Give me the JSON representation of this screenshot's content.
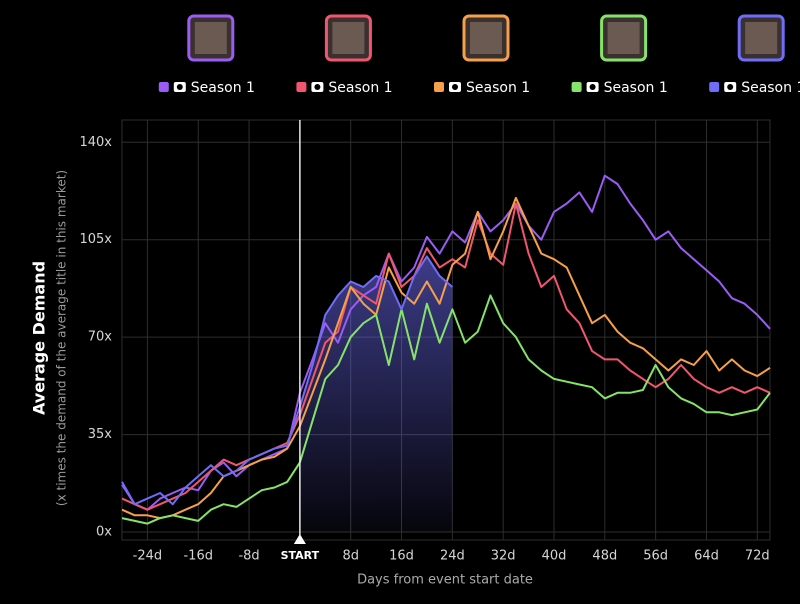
{
  "chart_data": {
    "type": "line",
    "y_title": "Average Demand",
    "y_subtitle": "(x times the demand of the average title in this market)",
    "x_title": "Days from event start date",
    "grid": true,
    "legend": "top",
    "xlim": [
      -28,
      74
    ],
    "ylim": [
      0,
      148
    ],
    "xticks": [
      {
        "value": -24,
        "label": "-24d"
      },
      {
        "value": -16,
        "label": "-16d"
      },
      {
        "value": -8,
        "label": "-8d"
      },
      {
        "value": 0,
        "label": "START"
      },
      {
        "value": 8,
        "label": "8d"
      },
      {
        "value": 16,
        "label": "16d"
      },
      {
        "value": 24,
        "label": "24d"
      },
      {
        "value": 32,
        "label": "32d"
      },
      {
        "value": 40,
        "label": "40d"
      },
      {
        "value": 48,
        "label": "48d"
      },
      {
        "value": 56,
        "label": "56d"
      },
      {
        "value": 64,
        "label": "64d"
      },
      {
        "value": 72,
        "label": "72d"
      }
    ],
    "yticks": [
      {
        "value": 0,
        "label": "0x"
      },
      {
        "value": 35,
        "label": "35x"
      },
      {
        "value": 70,
        "label": "70x"
      },
      {
        "value": 105,
        "label": "105x"
      },
      {
        "value": 140,
        "label": "140x"
      }
    ],
    "x": [
      -28,
      -26,
      -24,
      -22,
      -20,
      -18,
      -16,
      -14,
      -12,
      -10,
      -8,
      -6,
      -4,
      -2,
      0,
      2,
      4,
      6,
      8,
      10,
      12,
      14,
      16,
      18,
      20,
      22,
      24,
      26,
      28,
      30,
      32,
      34,
      36,
      38,
      40,
      42,
      44,
      46,
      48,
      50,
      52,
      54,
      56,
      58,
      60,
      62,
      64,
      66,
      68,
      70,
      72,
      74
    ],
    "series": [
      {
        "name": "Season 1",
        "color": "#9b5cf6",
        "values": [
          17,
          10,
          8,
          12,
          14,
          16,
          15,
          22,
          25,
          20,
          24,
          26,
          28,
          30,
          50,
          62,
          75,
          68,
          80,
          85,
          88,
          100,
          90,
          95,
          106,
          100,
          108,
          104,
          115,
          108,
          112,
          118,
          110,
          105,
          115,
          118,
          122,
          115,
          128,
          125,
          118,
          112,
          105,
          108,
          102,
          98,
          94,
          90,
          84,
          82,
          78,
          73
        ]
      },
      {
        "name": "Season 1",
        "color": "#f2566e",
        "values": [
          12,
          10,
          8,
          10,
          12,
          14,
          18,
          22,
          26,
          24,
          26,
          28,
          30,
          32,
          42,
          55,
          68,
          72,
          88,
          85,
          82,
          100,
          88,
          92,
          102,
          95,
          98,
          95,
          112,
          100,
          96,
          118,
          100,
          88,
          92,
          80,
          75,
          65,
          62,
          62,
          58,
          55,
          52,
          55,
          60,
          55,
          52,
          50,
          52,
          50,
          52,
          50
        ]
      },
      {
        "name": "Season 1",
        "color": "#f7a04a",
        "values": [
          8,
          6,
          6,
          5,
          6,
          8,
          10,
          14,
          20,
          22,
          24,
          26,
          27,
          30,
          38,
          50,
          62,
          75,
          88,
          82,
          78,
          95,
          86,
          82,
          90,
          82,
          96,
          100,
          115,
          98,
          108,
          120,
          110,
          100,
          98,
          95,
          85,
          75,
          78,
          72,
          68,
          66,
          62,
          58,
          62,
          60,
          65,
          58,
          62,
          58,
          56,
          59
        ]
      },
      {
        "name": "Season 1",
        "color": "#86e36a",
        "values": [
          5,
          4,
          3,
          5,
          6,
          5,
          4,
          8,
          10,
          9,
          12,
          15,
          16,
          18,
          25,
          40,
          55,
          60,
          70,
          75,
          78,
          60,
          80,
          62,
          82,
          68,
          80,
          68,
          72,
          85,
          75,
          70,
          62,
          58,
          55,
          54,
          53,
          52,
          48,
          50,
          50,
          51,
          60,
          52,
          48,
          46,
          43,
          43,
          42,
          43,
          44,
          50
        ]
      },
      {
        "name": "Season 1",
        "color": "#6f6df7",
        "values": [
          18,
          10,
          12,
          14,
          10,
          16,
          20,
          24,
          20,
          22,
          26,
          28,
          30,
          31,
          45,
          60,
          78,
          85,
          90,
          88,
          92,
          90,
          80,
          92,
          99,
          92,
          88,
          null,
          null,
          null,
          null,
          null,
          null,
          null,
          null,
          null,
          null,
          null,
          null,
          null,
          null,
          null,
          null,
          null,
          null,
          null,
          null,
          null,
          null,
          null,
          null,
          null
        ]
      }
    ]
  }
}
